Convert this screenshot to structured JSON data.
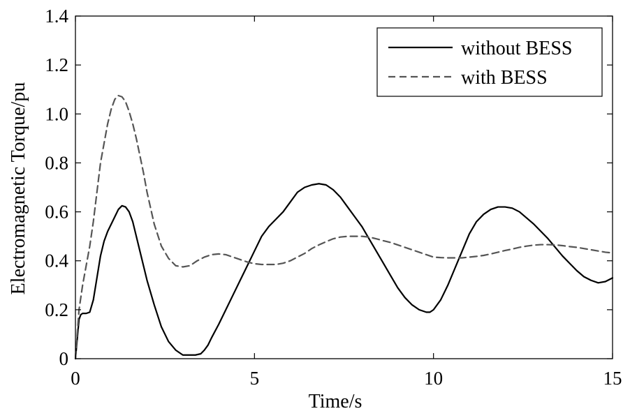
{
  "chart_data": {
    "type": "line",
    "title": "",
    "xlabel": "Time/s",
    "ylabel": "Electromagnetic Torque/pu",
    "xlim": [
      0,
      15
    ],
    "ylim": [
      0,
      1.4
    ],
    "xticks": [
      0,
      5,
      10,
      15
    ],
    "xtick_labels": [
      "0",
      "5",
      "10",
      "15"
    ],
    "yticks": [
      0,
      0.2,
      0.4,
      0.6,
      0.8,
      1.0,
      1.2,
      1.4
    ],
    "ytick_labels": [
      "0",
      "0.2",
      "0.4",
      "0.6",
      "0.8",
      "1.0",
      "1.2",
      "1.4"
    ],
    "grid": false,
    "legend_position": "top-right",
    "series": [
      {
        "name": "without BESS",
        "style": "solid",
        "color": "#000000",
        "x": [
          0,
          0.05,
          0.1,
          0.15,
          0.2,
          0.3,
          0.4,
          0.5,
          0.6,
          0.7,
          0.8,
          0.9,
          1.0,
          1.1,
          1.2,
          1.3,
          1.4,
          1.5,
          1.6,
          1.7,
          1.8,
          1.9,
          2.0,
          2.2,
          2.4,
          2.6,
          2.8,
          3.0,
          3.2,
          3.35,
          3.5,
          3.6,
          3.7,
          3.8,
          4.0,
          4.2,
          4.4,
          4.6,
          4.8,
          5.0,
          5.2,
          5.4,
          5.6,
          5.8,
          6.0,
          6.2,
          6.4,
          6.6,
          6.8,
          7.0,
          7.2,
          7.4,
          7.6,
          7.8,
          8.0,
          8.2,
          8.4,
          8.6,
          8.8,
          9.0,
          9.2,
          9.4,
          9.6,
          9.8,
          9.9,
          10.0,
          10.2,
          10.4,
          10.6,
          10.8,
          11.0,
          11.2,
          11.4,
          11.6,
          11.8,
          12.0,
          12.2,
          12.4,
          12.6,
          12.8,
          13.0,
          13.2,
          13.4,
          13.6,
          13.8,
          14.0,
          14.2,
          14.4,
          14.6,
          14.8,
          15.0
        ],
        "values": [
          0.0,
          0.08,
          0.16,
          0.18,
          0.185,
          0.185,
          0.19,
          0.24,
          0.33,
          0.42,
          0.48,
          0.52,
          0.55,
          0.58,
          0.61,
          0.625,
          0.62,
          0.6,
          0.56,
          0.5,
          0.44,
          0.38,
          0.32,
          0.22,
          0.13,
          0.07,
          0.035,
          0.015,
          0.015,
          0.015,
          0.02,
          0.035,
          0.055,
          0.085,
          0.14,
          0.2,
          0.26,
          0.32,
          0.38,
          0.44,
          0.5,
          0.54,
          0.57,
          0.6,
          0.64,
          0.68,
          0.7,
          0.71,
          0.715,
          0.71,
          0.69,
          0.66,
          0.62,
          0.58,
          0.54,
          0.49,
          0.44,
          0.39,
          0.34,
          0.29,
          0.25,
          0.22,
          0.2,
          0.19,
          0.19,
          0.2,
          0.24,
          0.3,
          0.37,
          0.44,
          0.51,
          0.56,
          0.59,
          0.61,
          0.62,
          0.62,
          0.615,
          0.6,
          0.575,
          0.55,
          0.52,
          0.49,
          0.455,
          0.42,
          0.39,
          0.36,
          0.335,
          0.32,
          0.31,
          0.315,
          0.33
        ]
      },
      {
        "name": "with BESS",
        "style": "dashed",
        "color": "#555555",
        "x": [
          0,
          0.05,
          0.1,
          0.15,
          0.2,
          0.3,
          0.4,
          0.5,
          0.6,
          0.7,
          0.8,
          0.9,
          1.0,
          1.1,
          1.2,
          1.3,
          1.4,
          1.5,
          1.6,
          1.7,
          1.8,
          1.9,
          2.0,
          2.2,
          2.4,
          2.6,
          2.8,
          3.0,
          3.2,
          3.4,
          3.6,
          3.8,
          4.0,
          4.2,
          4.4,
          4.6,
          4.8,
          5.0,
          5.2,
          5.4,
          5.6,
          5.8,
          6.0,
          6.2,
          6.4,
          6.6,
          6.8,
          7.0,
          7.2,
          7.4,
          7.6,
          7.8,
          8.0,
          8.2,
          8.4,
          8.6,
          8.8,
          9.0,
          9.2,
          9.4,
          9.6,
          9.8,
          10.0,
          10.2,
          10.4,
          10.6,
          10.8,
          11.0,
          11.2,
          11.4,
          11.6,
          11.8,
          12.0,
          12.2,
          12.4,
          12.6,
          12.8,
          13.0,
          13.2,
          13.4,
          13.6,
          13.8,
          14.0,
          14.2,
          14.4,
          14.6,
          14.8,
          15.0
        ],
        "values": [
          0.0,
          0.1,
          0.2,
          0.25,
          0.3,
          0.38,
          0.46,
          0.56,
          0.68,
          0.8,
          0.88,
          0.96,
          1.02,
          1.06,
          1.075,
          1.07,
          1.05,
          1.01,
          0.96,
          0.9,
          0.83,
          0.76,
          0.68,
          0.55,
          0.46,
          0.41,
          0.38,
          0.375,
          0.38,
          0.4,
          0.415,
          0.425,
          0.428,
          0.425,
          0.415,
          0.405,
          0.395,
          0.388,
          0.385,
          0.385,
          0.385,
          0.39,
          0.4,
          0.415,
          0.43,
          0.45,
          0.465,
          0.478,
          0.49,
          0.497,
          0.5,
          0.5,
          0.5,
          0.497,
          0.49,
          0.482,
          0.475,
          0.465,
          0.455,
          0.445,
          0.435,
          0.425,
          0.415,
          0.413,
          0.412,
          0.412,
          0.412,
          0.415,
          0.418,
          0.422,
          0.428,
          0.435,
          0.442,
          0.448,
          0.455,
          0.46,
          0.464,
          0.466,
          0.466,
          0.465,
          0.462,
          0.458,
          0.455,
          0.45,
          0.445,
          0.44,
          0.435,
          0.432
        ]
      }
    ]
  }
}
